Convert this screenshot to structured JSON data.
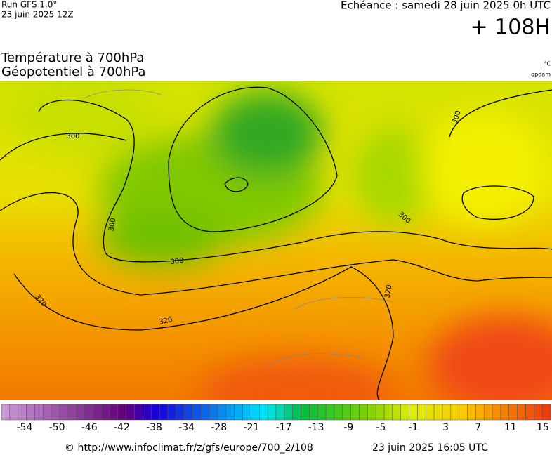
{
  "header": {
    "run": "Run GFS 1.0°",
    "run_date": "23 juin 2025 12Z",
    "forecast": "Echéance : samedi 28 juin 2025 0h UTC",
    "lead": "+ 108H",
    "title_1": "Température à 700hPa",
    "title_2": "Géopotentiel à 700hPa",
    "unit_1": "°C",
    "unit_2": "gpdam"
  },
  "map": {
    "contour_labels": [
      300,
      300,
      300,
      320,
      320,
      300,
      320,
      300
    ]
  },
  "colorbar": {
    "ticks": [
      -54,
      -50,
      -46,
      -42,
      -38,
      -34,
      -28,
      -21,
      -17,
      -13,
      -9,
      -5,
      -1,
      3,
      7,
      11,
      15
    ]
  },
  "footer": {
    "source": "© http://www.infoclimat.fr/z/gfs/europe/700_2/108",
    "date": "23 juin 2025 16:05 UTC"
  }
}
